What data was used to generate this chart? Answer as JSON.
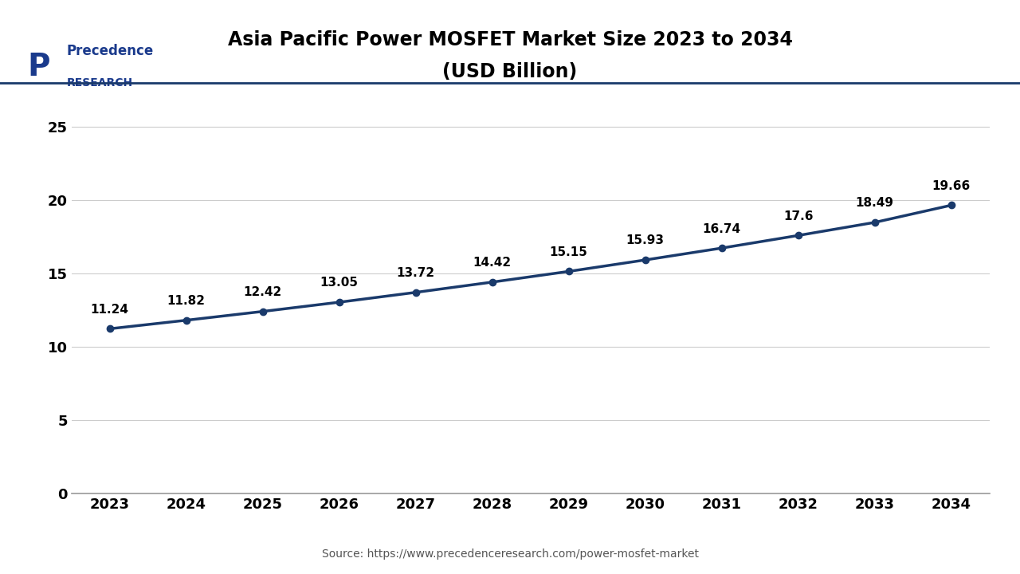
{
  "title_line1": "Asia Pacific Power MOSFET Market Size 2023 to 2034",
  "title_line2": "(USD Billion)",
  "source_text": "Source: https://www.precedenceresearch.com/power-mosfet-market",
  "years": [
    2023,
    2024,
    2025,
    2026,
    2027,
    2028,
    2029,
    2030,
    2031,
    2032,
    2033,
    2034
  ],
  "values": [
    11.24,
    11.82,
    12.42,
    13.05,
    13.72,
    14.42,
    15.15,
    15.93,
    16.74,
    17.6,
    18.49,
    19.66
  ],
  "line_color": "#1a3a6b",
  "marker_color": "#1a3a6b",
  "yticks": [
    0,
    5,
    10,
    15,
    20,
    25
  ],
  "ylim": [
    0,
    27
  ],
  "background_color": "#ffffff",
  "grid_color": "#cccccc",
  "title_color": "#000000",
  "tick_label_color": "#000000",
  "annotation_color": "#000000",
  "source_color": "#555555",
  "logo_color": "#1a3a8c"
}
